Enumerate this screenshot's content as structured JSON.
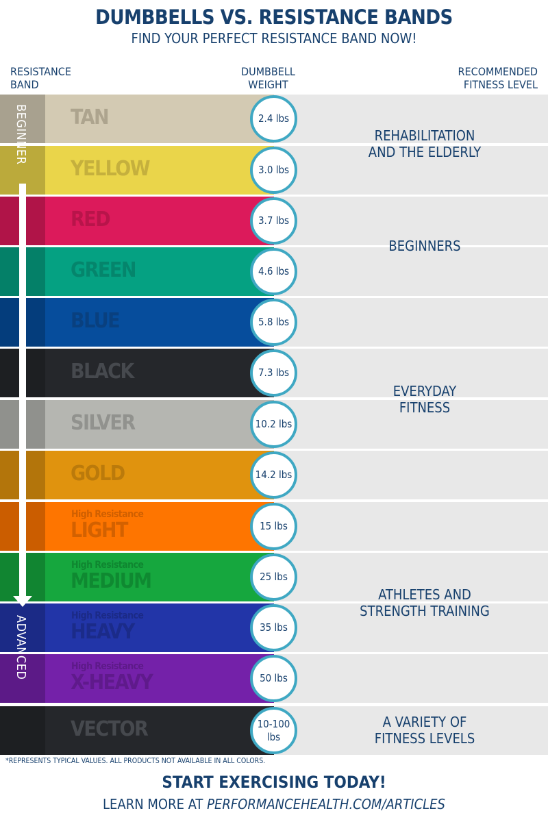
{
  "header": {
    "title": "DUMBBELLS VS. RESISTANCE BANDS",
    "subtitle": "FIND YOUR PERFECT RESISTANCE BAND NOW!"
  },
  "columns": {
    "band": "RESISTANCE\nBAND",
    "weight": "DUMBBELL\nWEIGHT",
    "level": "RECOMMENDED\nFITNESS LEVEL"
  },
  "scale": {
    "start": "BEGINNER",
    "end": "ADVANCED"
  },
  "bands": [
    {
      "name": "TAN",
      "sub": "",
      "weight": "2.4 lbs",
      "color": "#d3cab3",
      "text": "#a9a08a"
    },
    {
      "name": "YELLOW",
      "sub": "",
      "weight": "3.0 lbs",
      "color": "#ead54a",
      "text": "#c2ad3c"
    },
    {
      "name": "RED",
      "sub": "",
      "weight": "3.7 lbs",
      "color": "#dc1a5b",
      "text": "#b51449"
    },
    {
      "name": "GREEN",
      "sub": "",
      "weight": "4.6 lbs",
      "color": "#05a182",
      "text": "#06826a"
    },
    {
      "name": "BLUE",
      "sub": "",
      "weight": "5.8 lbs",
      "color": "#064d9c",
      "text": "#0a3f7c"
    },
    {
      "name": "BLACK",
      "sub": "",
      "weight": "7.3 lbs",
      "color": "#25272b",
      "text": "#4a4d52"
    },
    {
      "name": "SILVER",
      "sub": "",
      "weight": "10.2 lbs",
      "color": "#b5b6b1",
      "text": "#8e8f8b"
    },
    {
      "name": "GOLD",
      "sub": "",
      "weight": "14.2 lbs",
      "color": "#e0930e",
      "text": "#b8780b"
    },
    {
      "name": "LIGHT",
      "sub": "High Resistance",
      "weight": "15 lbs",
      "color": "#fe7500",
      "text": "#cf5f00"
    },
    {
      "name": "MEDIUM",
      "sub": "High Resistance",
      "weight": "25 lbs",
      "color": "#16a73e",
      "text": "#0f8630"
    },
    {
      "name": "HEAVY",
      "sub": "High Resistance",
      "weight": "35 lbs",
      "color": "#2235a8",
      "text": "#1b2a86"
    },
    {
      "name": "X-HEAVY",
      "sub": "High Resistance",
      "weight": "50 lbs",
      "color": "#7421a9",
      "text": "#5d1a88"
    },
    {
      "name": "VECTOR",
      "sub": "",
      "weight": "10-100\nlbs",
      "color": "#25272b",
      "text": "#4a4d52"
    }
  ],
  "levels": [
    {
      "label": "REHABILITATION\nAND THE ELDERLY"
    },
    {
      "label": "BEGINNERS"
    },
    {
      "label": "EVERYDAY\nFITNESS"
    },
    {
      "label": "ATHLETES AND\nSTRENGTH TRAINING"
    },
    {
      "label": "A VARIETY OF\nFITNESS LEVELS"
    }
  ],
  "footer": {
    "note": "*REPRESENTS TYPICAL VALUES. ALL PRODUCTS NOT AVAILABLE IN ALL COLORS.",
    "cta": "START EXERCISING TODAY!",
    "learn_prefix": "LEARN MORE AT ",
    "learn_link": "PERFORMANCEHEALTH.COM/ARTICLES"
  }
}
